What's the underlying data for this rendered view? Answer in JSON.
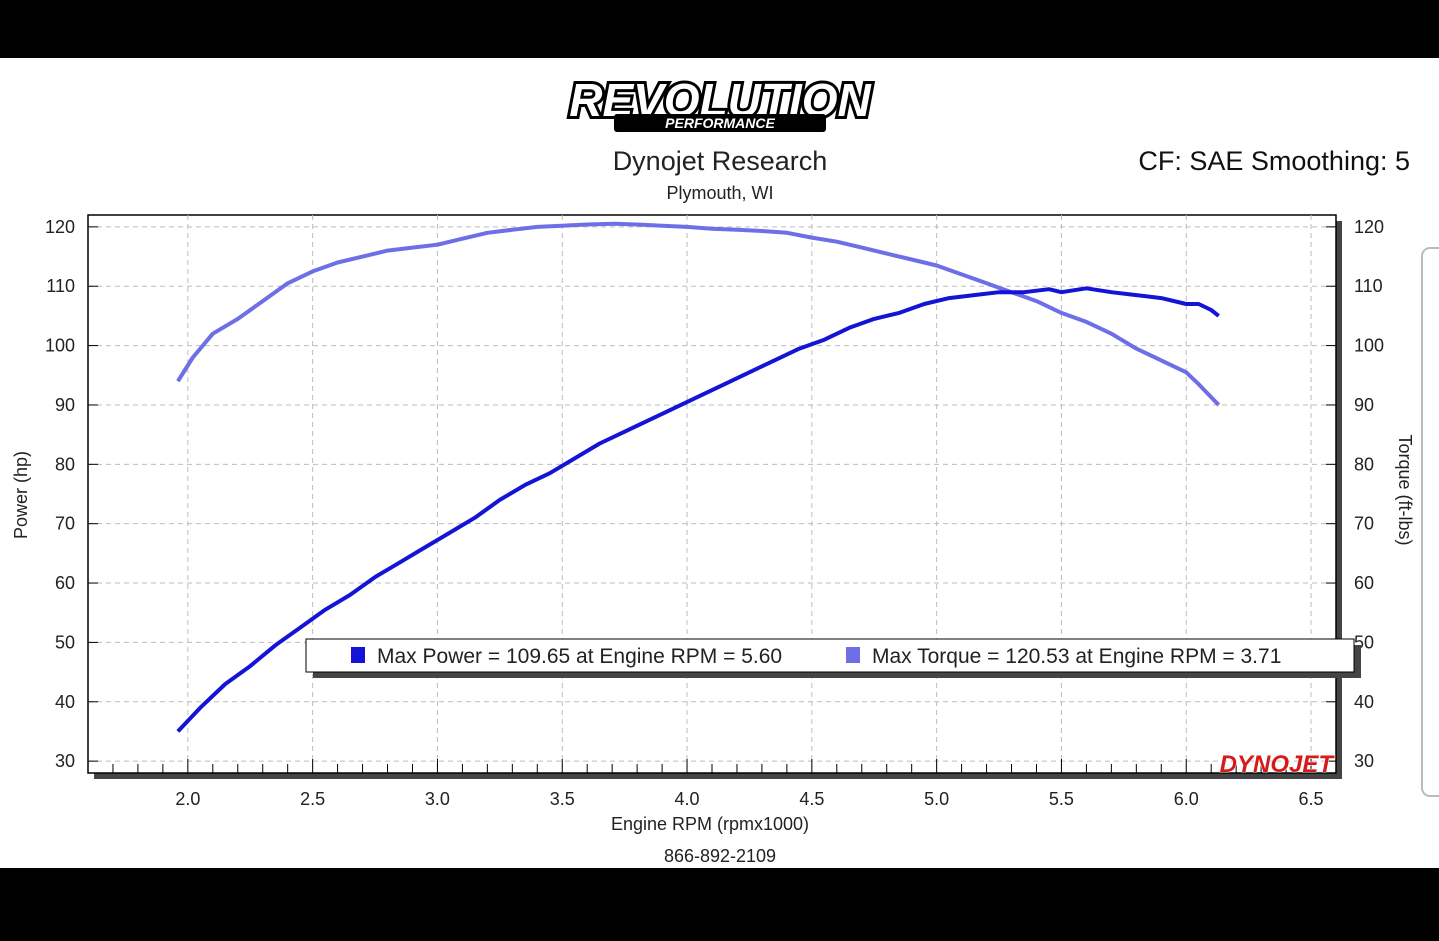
{
  "header": {
    "logo_main": "REVOLUTION",
    "logo_sub": "PERFORMANCE",
    "title": "Dynojet Research",
    "location": "Plymouth, WI",
    "correction": "CF: SAE Smoothing: 5",
    "footer_phone": "866-892-2109",
    "brand_watermark": "DYNOJET"
  },
  "colors": {
    "power": "#1414d6",
    "torque": "#6e6ee6",
    "grid": "#bdbdbd",
    "axis": "#000000"
  },
  "legend": {
    "power_text": "Max Power = 109.65 at Engine RPM = 5.60",
    "torque_text": "Max Torque = 120.53 at Engine RPM = 3.71"
  },
  "chart_data": {
    "type": "line",
    "xlabel": "Engine RPM (rpmx1000)",
    "ylabel": "Power (hp)",
    "y2label": "Torque (ft-lbs)",
    "xlim": [
      1.6,
      6.6
    ],
    "ylim": [
      28,
      122
    ],
    "xticks": [
      "2.0",
      "2.5",
      "3.0",
      "3.5",
      "4.0",
      "4.5",
      "5.0",
      "5.5",
      "6.0",
      "6.5"
    ],
    "yticks": [
      "30",
      "40",
      "50",
      "60",
      "70",
      "80",
      "90",
      "100",
      "110",
      "120"
    ],
    "grid": true,
    "series": [
      {
        "name": "Power",
        "axis": "left",
        "points": [
          [
            1.96,
            35
          ],
          [
            2.05,
            39
          ],
          [
            2.15,
            43
          ],
          [
            2.25,
            46
          ],
          [
            2.35,
            49.5
          ],
          [
            2.45,
            52.5
          ],
          [
            2.55,
            55.5
          ],
          [
            2.65,
            58
          ],
          [
            2.75,
            61
          ],
          [
            2.85,
            63.5
          ],
          [
            2.95,
            66
          ],
          [
            3.05,
            68.5
          ],
          [
            3.15,
            71
          ],
          [
            3.25,
            74
          ],
          [
            3.35,
            76.5
          ],
          [
            3.45,
            78.5
          ],
          [
            3.55,
            81
          ],
          [
            3.65,
            83.5
          ],
          [
            3.75,
            85.5
          ],
          [
            3.85,
            87.5
          ],
          [
            3.95,
            89.5
          ],
          [
            4.05,
            91.5
          ],
          [
            4.15,
            93.5
          ],
          [
            4.25,
            95.5
          ],
          [
            4.35,
            97.5
          ],
          [
            4.45,
            99.5
          ],
          [
            4.55,
            101
          ],
          [
            4.65,
            103
          ],
          [
            4.75,
            104.5
          ],
          [
            4.85,
            105.5
          ],
          [
            4.95,
            107
          ],
          [
            5.05,
            108
          ],
          [
            5.15,
            108.5
          ],
          [
            5.25,
            109
          ],
          [
            5.35,
            109
          ],
          [
            5.45,
            109.5
          ],
          [
            5.5,
            109
          ],
          [
            5.6,
            109.65
          ],
          [
            5.7,
            109
          ],
          [
            5.8,
            108.5
          ],
          [
            5.9,
            108
          ],
          [
            6.0,
            107
          ],
          [
            6.05,
            107
          ],
          [
            6.1,
            106
          ],
          [
            6.13,
            105
          ]
        ]
      },
      {
        "name": "Torque",
        "axis": "right",
        "points": [
          [
            1.96,
            94
          ],
          [
            2.02,
            98
          ],
          [
            2.1,
            102
          ],
          [
            2.2,
            104.5
          ],
          [
            2.3,
            107.5
          ],
          [
            2.4,
            110.5
          ],
          [
            2.5,
            112.5
          ],
          [
            2.6,
            114
          ],
          [
            2.7,
            115
          ],
          [
            2.8,
            116
          ],
          [
            2.9,
            116.5
          ],
          [
            3.0,
            117
          ],
          [
            3.1,
            118
          ],
          [
            3.2,
            119
          ],
          [
            3.3,
            119.5
          ],
          [
            3.4,
            120
          ],
          [
            3.5,
            120.2
          ],
          [
            3.6,
            120.4
          ],
          [
            3.71,
            120.53
          ],
          [
            3.8,
            120.4
          ],
          [
            3.9,
            120.2
          ],
          [
            4.0,
            120
          ],
          [
            4.1,
            119.7
          ],
          [
            4.2,
            119.5
          ],
          [
            4.3,
            119.3
          ],
          [
            4.4,
            119
          ],
          [
            4.5,
            118.2
          ],
          [
            4.6,
            117.5
          ],
          [
            4.7,
            116.5
          ],
          [
            4.8,
            115.5
          ],
          [
            4.9,
            114.5
          ],
          [
            5.0,
            113.5
          ],
          [
            5.1,
            112
          ],
          [
            5.2,
            110.5
          ],
          [
            5.3,
            109
          ],
          [
            5.4,
            107.5
          ],
          [
            5.5,
            105.5
          ],
          [
            5.6,
            104
          ],
          [
            5.7,
            102
          ],
          [
            5.8,
            99.5
          ],
          [
            5.9,
            97.5
          ],
          [
            6.0,
            95.5
          ],
          [
            6.05,
            93.5
          ],
          [
            6.13,
            90
          ]
        ]
      }
    ]
  }
}
